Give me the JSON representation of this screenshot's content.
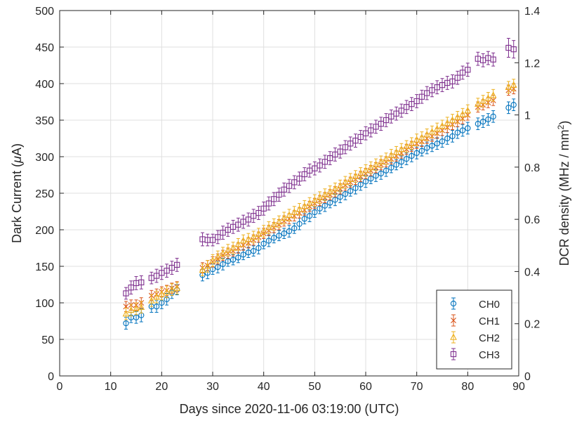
{
  "chart_data": {
    "type": "scatter",
    "title": "",
    "xlabel": "Days since 2020-11-06 03:19:00 (UTC)",
    "ylabel": "Dark Current (μA)",
    "ylabel_parts": {
      "before": "Dark Current (",
      "mu": "μ",
      "after": "A)"
    },
    "y2label": "DCR density (MHz / mm²)",
    "y2label_parts": {
      "before": "DCR density (MHz / mm",
      "sup": "2",
      "after": ")"
    },
    "xlim": [
      0,
      90
    ],
    "ylim": [
      0,
      500
    ],
    "y2lim": [
      0,
      1.4
    ],
    "xticks": [
      0,
      10,
      20,
      30,
      40,
      50,
      60,
      70,
      80,
      90
    ],
    "yticks": [
      0,
      50,
      100,
      150,
      200,
      250,
      300,
      350,
      400,
      450,
      500
    ],
    "y2ticks": [
      0,
      0.2,
      0.4,
      0.6,
      0.8,
      1,
      1.2,
      1.4
    ],
    "grid": true,
    "legend_position": "bottom-right",
    "x": [
      13,
      14,
      15,
      16,
      18,
      19,
      20,
      21,
      22,
      23,
      28,
      29,
      30,
      31,
      32,
      33,
      34,
      35,
      36,
      37,
      38,
      39,
      40,
      41,
      42,
      43,
      44,
      45,
      46,
      47,
      48,
      49,
      50,
      51,
      52,
      53,
      54,
      55,
      56,
      57,
      58,
      59,
      60,
      61,
      62,
      63,
      64,
      65,
      66,
      67,
      68,
      69,
      70,
      71,
      72,
      73,
      74,
      75,
      76,
      77,
      78,
      79,
      80,
      82,
      83,
      84,
      85,
      88,
      89
    ],
    "series": [
      {
        "name": "CH0",
        "color": "#0072BD",
        "marker": "circle",
        "values": [
          72,
          80,
          80,
          83,
          95,
          95,
          100,
          105,
          114,
          118,
          138,
          141,
          146,
          149,
          153,
          157,
          159,
          162,
          166,
          169,
          171,
          175,
          181,
          185,
          189,
          192,
          195,
          198,
          202,
          208,
          215,
          219,
          224,
          229,
          233,
          237,
          241,
          245,
          249,
          253,
          257,
          262,
          266,
          270,
          274,
          277,
          281,
          285,
          289,
          293,
          297,
          301,
          305,
          308,
          312,
          315,
          318,
          321,
          325,
          328,
          333,
          336,
          339,
          345,
          348,
          351,
          355,
          367,
          371
        ],
        "errors": [
          8,
          7,
          8,
          9,
          8,
          8,
          8,
          8,
          8,
          7,
          8,
          8,
          7,
          8,
          8,
          7,
          7,
          7,
          7,
          7,
          7,
          8,
          7,
          8,
          7,
          7,
          7,
          8,
          7,
          8,
          7,
          8,
          7,
          7,
          8,
          7,
          8,
          8,
          8,
          7,
          8,
          8,
          8,
          7,
          8,
          8,
          8,
          7,
          7,
          8,
          8,
          8,
          8,
          7,
          8,
          8,
          8,
          8,
          8,
          8,
          8,
          8,
          8,
          8,
          8,
          8,
          8,
          8,
          8
        ]
      },
      {
        "name": "CH1",
        "color": "#D95319",
        "marker": "x",
        "values": [
          95,
          97,
          97,
          100,
          110,
          112,
          115,
          117,
          120,
          122,
          148,
          151,
          156,
          160,
          165,
          168,
          171,
          175,
          179,
          182,
          186,
          190,
          195,
          199,
          203,
          207,
          212,
          215,
          219,
          223,
          227,
          232,
          236,
          240,
          244,
          248,
          252,
          256,
          261,
          265,
          269,
          273,
          277,
          281,
          285,
          289,
          293,
          297,
          301,
          305,
          310,
          314,
          318,
          321,
          325,
          328,
          332,
          336,
          340,
          344,
          348,
          352,
          357,
          368,
          371,
          374,
          377,
          391,
          393
        ],
        "errors": [
          7,
          7,
          7,
          7,
          7,
          7,
          7,
          7,
          7,
          7,
          7,
          7,
          7,
          7,
          7,
          7,
          7,
          7,
          7,
          7,
          7,
          7,
          7,
          7,
          7,
          7,
          7,
          7,
          7,
          7,
          7,
          7,
          7,
          7,
          7,
          7,
          7,
          7,
          7,
          7,
          7,
          7,
          7,
          7,
          7,
          7,
          7,
          7,
          7,
          7,
          7,
          7,
          7,
          7,
          7,
          7,
          7,
          7,
          7,
          7,
          7,
          7,
          7,
          7,
          7,
          7,
          7,
          7,
          7
        ]
      },
      {
        "name": "CH2",
        "color": "#EDB120",
        "marker": "triangle",
        "values": [
          85,
          90,
          92,
          94,
          103,
          108,
          112,
          115,
          118,
          120,
          145,
          150,
          158,
          163,
          168,
          172,
          175,
          180,
          185,
          187,
          190,
          194,
          198,
          203,
          207,
          211,
          216,
          220,
          224,
          228,
          232,
          236,
          240,
          244,
          248,
          252,
          256,
          260,
          265,
          269,
          273,
          277,
          281,
          285,
          289,
          293,
          297,
          302,
          306,
          310,
          314,
          318,
          323,
          326,
          330,
          334,
          338,
          342,
          346,
          350,
          354,
          358,
          363,
          372,
          376,
          380,
          384,
          395,
          398
        ],
        "errors": [
          8,
          8,
          8,
          8,
          8,
          8,
          8,
          8,
          8,
          8,
          8,
          8,
          8,
          8,
          8,
          8,
          8,
          8,
          8,
          8,
          8,
          8,
          8,
          8,
          8,
          8,
          8,
          8,
          8,
          8,
          8,
          8,
          8,
          8,
          8,
          8,
          8,
          8,
          8,
          8,
          8,
          8,
          8,
          8,
          8,
          8,
          8,
          8,
          8,
          8,
          8,
          8,
          8,
          8,
          8,
          8,
          8,
          8,
          8,
          8,
          8,
          8,
          8,
          8,
          8,
          8,
          8,
          8,
          8
        ]
      },
      {
        "name": "CH3",
        "color": "#7E2F8E",
        "marker": "square",
        "values": [
          113,
          121,
          127,
          128,
          134,
          137,
          141,
          144,
          148,
          152,
          187,
          186,
          186,
          190,
          196,
          200,
          204,
          207,
          211,
          214,
          219,
          223,
          229,
          236,
          242,
          248,
          255,
          260,
          265,
          270,
          276,
          281,
          284,
          288,
          293,
          298,
          303,
          307,
          313,
          318,
          322,
          327,
          332,
          336,
          341,
          345,
          350,
          355,
          359,
          363,
          368,
          372,
          376,
          382,
          387,
          391,
          395,
          398,
          401,
          403,
          408,
          415,
          419,
          434,
          432,
          435,
          433,
          449,
          447
        ],
        "errors": [
          8,
          9,
          9,
          9,
          8,
          9,
          9,
          9,
          9,
          9,
          9,
          8,
          8,
          9,
          9,
          9,
          9,
          9,
          9,
          9,
          9,
          9,
          9,
          9,
          9,
          9,
          9,
          9,
          9,
          9,
          9,
          9,
          9,
          9,
          9,
          9,
          9,
          9,
          9,
          9,
          9,
          9,
          9,
          9,
          9,
          9,
          9,
          9,
          9,
          9,
          9,
          9,
          9,
          9,
          9,
          9,
          9,
          9,
          9,
          9,
          9,
          9,
          9,
          9,
          9,
          9,
          9,
          13,
          12
        ]
      }
    ]
  }
}
